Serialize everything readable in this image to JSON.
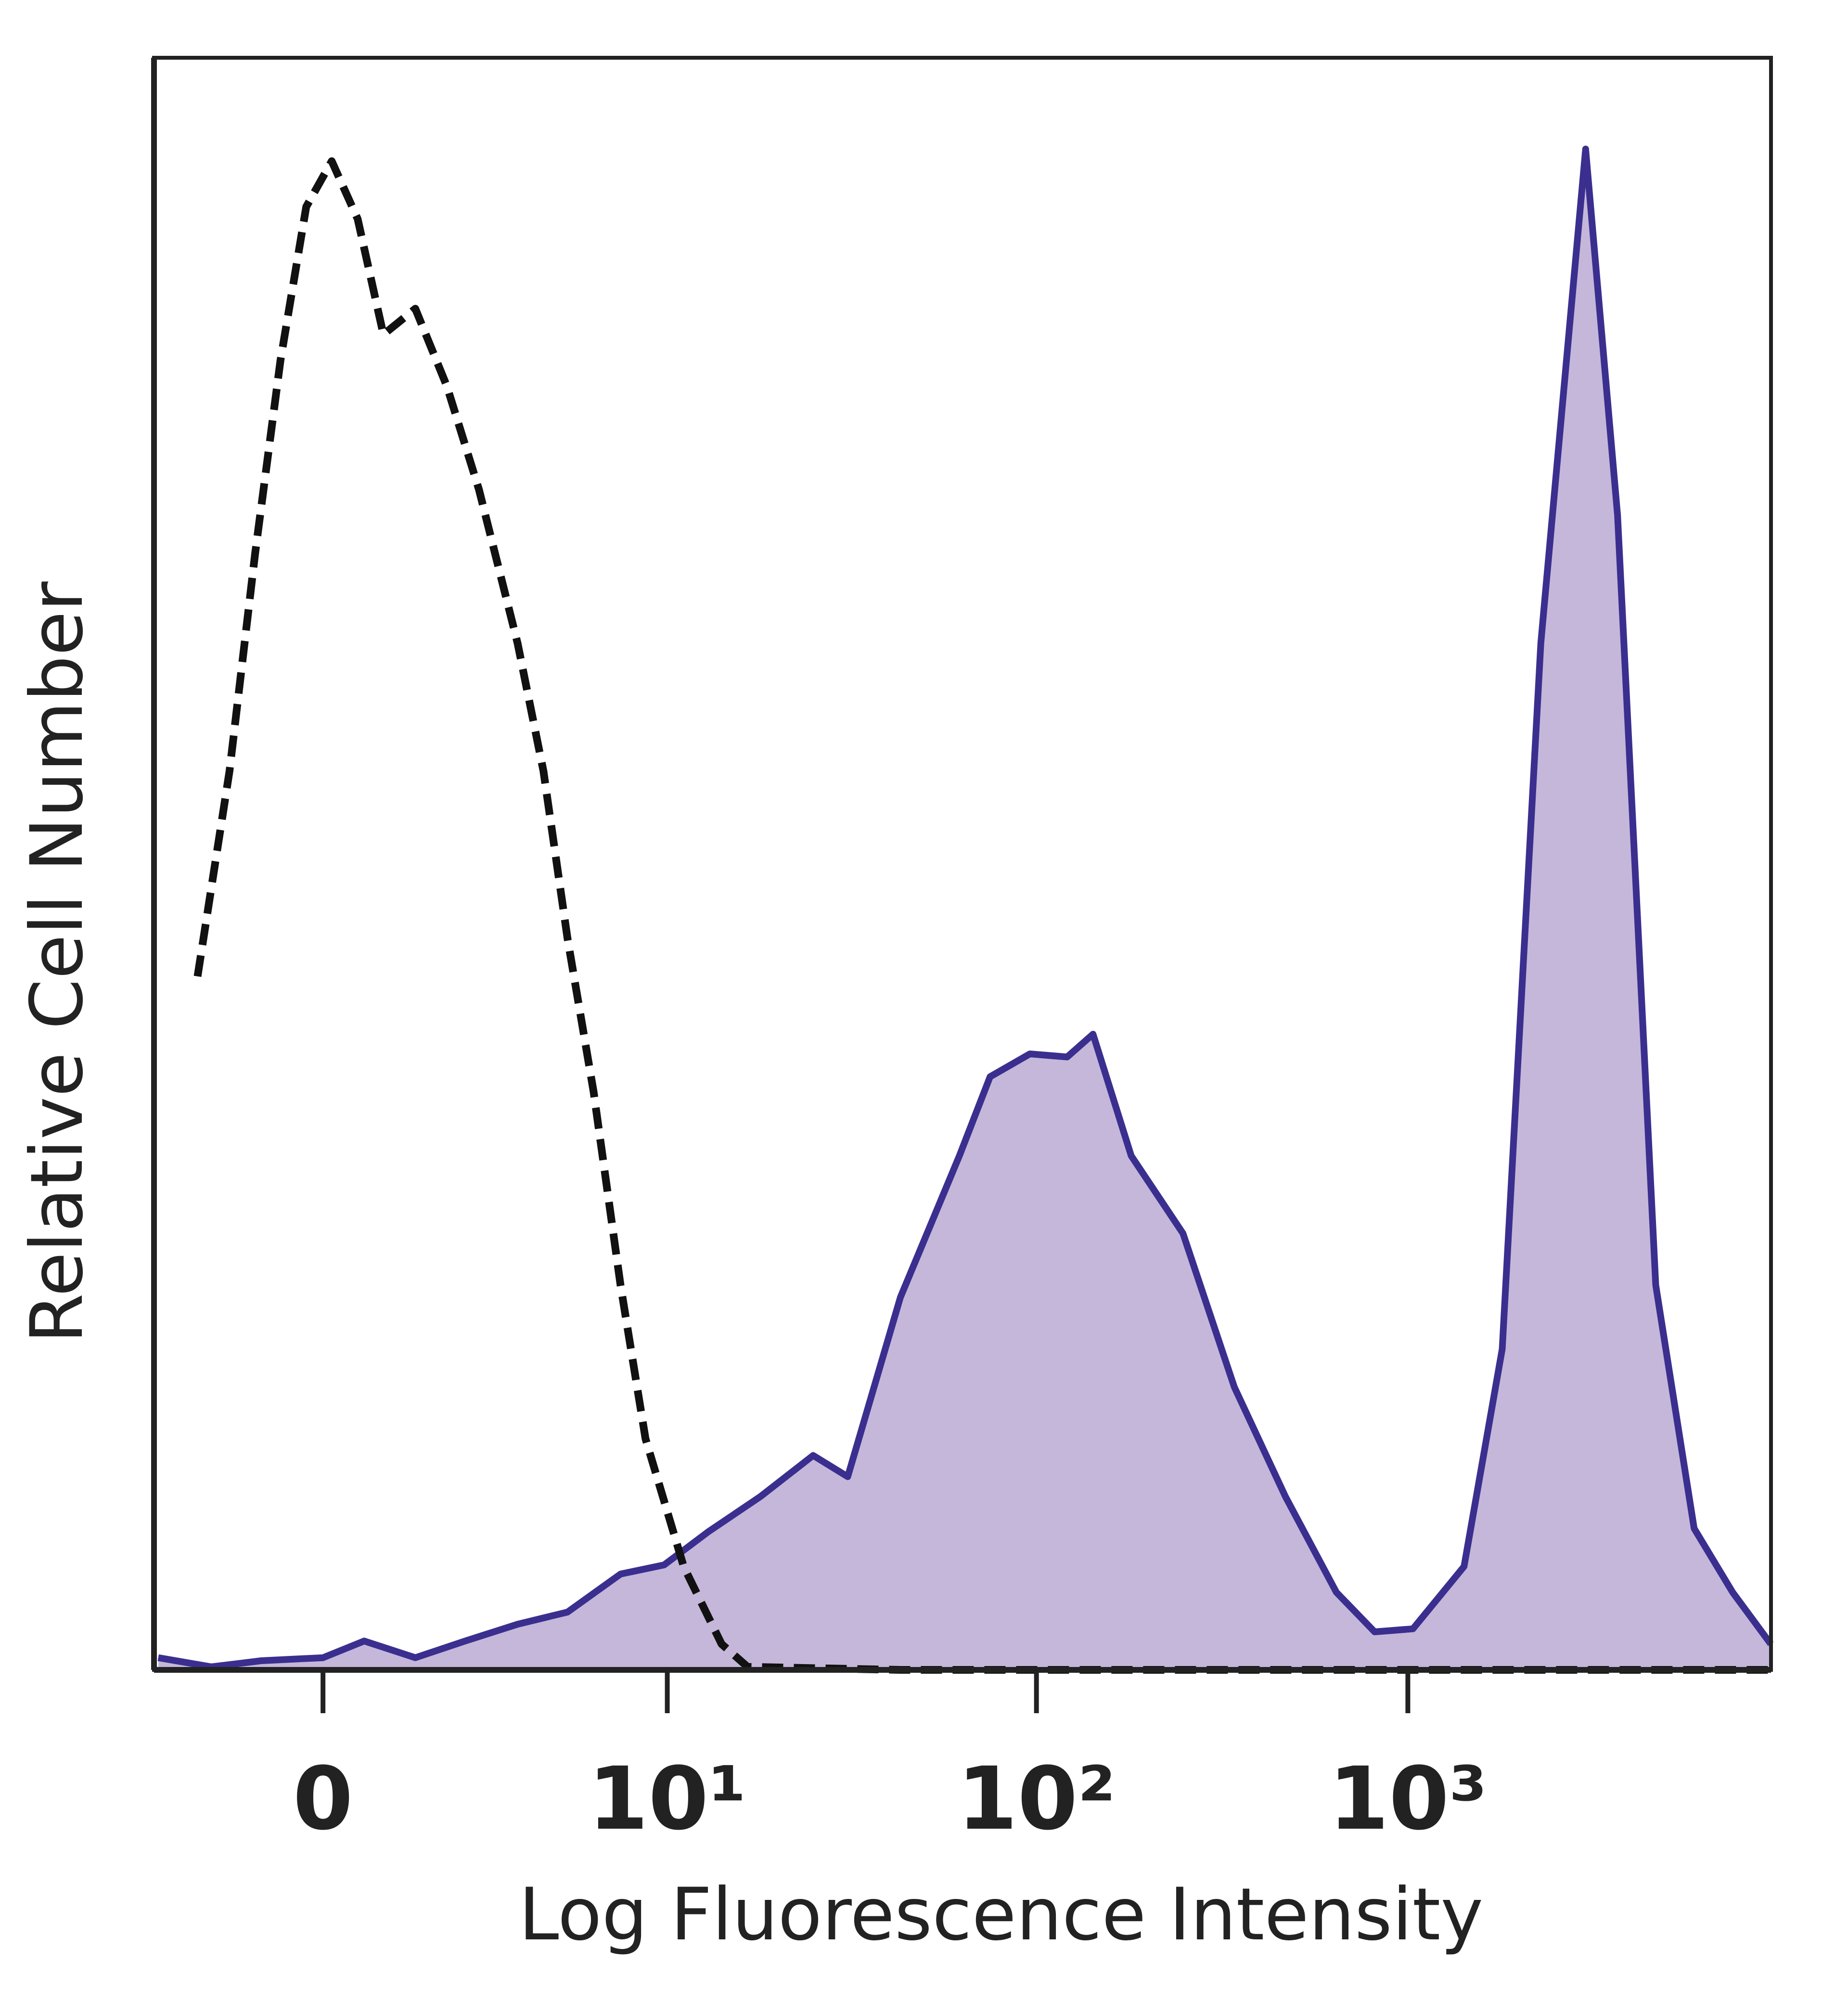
{
  "chart_data": {
    "type": "histogram-overlay",
    "xlabel": "Log Fluorescence Intensity",
    "ylabel": "Relative Cell Number",
    "xscale": "biexponential",
    "xlim": [
      -3,
      9500
    ],
    "ylim": [
      0,
      106
    ],
    "xticks": [
      0,
      {
        "value": 10,
        "label": "10¹"
      },
      {
        "value": 100,
        "label": "10²"
      },
      {
        "value": 1000,
        "label": "10³"
      }
    ],
    "series": [
      {
        "color": "#3a2f8f",
        "fill": "#c5b7d9",
        "style": "solid",
        "x": [
          -2.9,
          -1.8,
          -0.94,
          0,
          0.62,
          1.45,
          2.4,
          3.65,
          5.2,
          7.4,
          9.8,
          13,
          18,
          25,
          31,
          43,
          62,
          75,
          96,
          121,
          142,
          180,
          248,
          341,
          468,
          642,
          814,
          1032,
          1417,
          1795,
          2280,
          3010,
          3670,
          4650,
          5900,
          7490,
          9490
        ],
        "values": [
          0.8,
          0.2,
          0.6,
          0.8,
          1.9,
          0.8,
          1.9,
          3.0,
          3.8,
          6.3,
          6.9,
          9.1,
          11.4,
          14.1,
          12.7,
          24.5,
          33.8,
          39.0,
          40.5,
          40.3,
          41.8,
          33.8,
          28.7,
          18.6,
          11.4,
          5.1,
          2.5,
          2.7,
          6.8,
          21.1,
          67.5,
          100,
          75.9,
          25.3,
          9.3,
          5.1,
          1.7
        ]
      },
      {
        "color": "#111111",
        "style": "dashed",
        "x": [
          -2.06,
          -1.47,
          -1.04,
          -0.64,
          -0.25,
          0.13,
          0.52,
          0.92,
          1.45,
          2.03,
          2.7,
          3.65,
          4.4,
          5.2,
          6.2,
          7.4,
          8.7,
          11.1,
          14.1,
          16.6,
          43,
          468,
          9490
        ],
        "values": [
          45.6,
          59.1,
          73.4,
          86.1,
          96.2,
          99.2,
          95.4,
          87.8,
          89.5,
          84.4,
          77.6,
          67.5,
          59.1,
          48.1,
          38.0,
          25.3,
          15.2,
          6.8,
          1.7,
          0.2,
          0,
          0,
          0
        ]
      }
    ]
  }
}
